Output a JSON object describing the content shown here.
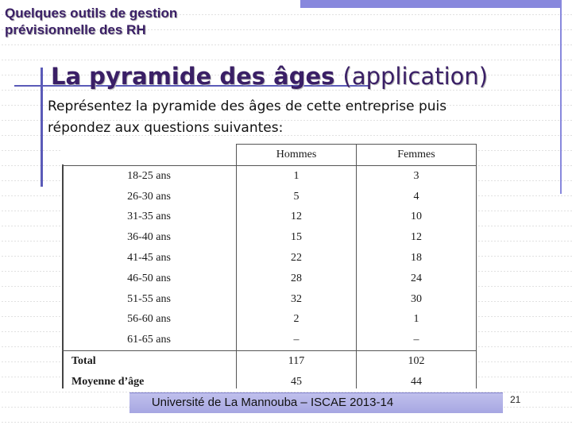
{
  "header": {
    "title_line1": "Quelques outils de gestion",
    "title_line2": "prévisionnelle des RH"
  },
  "slide": {
    "title_bold": "La pyramide des âges",
    "title_light": "(application)",
    "instruction_line1": "Représentez la pyramide des âges de cette entreprise puis",
    "instruction_line2": "répondez aux questions suivantes:"
  },
  "table": {
    "columns": [
      "",
      "Hommes",
      "Femmes"
    ],
    "rows": [
      {
        "label": "18-25 ans",
        "hommes": "1",
        "femmes": "3"
      },
      {
        "label": "26-30 ans",
        "hommes": "5",
        "femmes": "4"
      },
      {
        "label": "31-35 ans",
        "hommes": "12",
        "femmes": "10"
      },
      {
        "label": "36-40 ans",
        "hommes": "15",
        "femmes": "12"
      },
      {
        "label": "41-45 ans",
        "hommes": "22",
        "femmes": "18"
      },
      {
        "label": "46-50 ans",
        "hommes": "28",
        "femmes": "24"
      },
      {
        "label": "51-55 ans",
        "hommes": "32",
        "femmes": "30"
      },
      {
        "label": "56-60 ans",
        "hommes": "2",
        "femmes": "1"
      },
      {
        "label": "61-65 ans",
        "hommes": "–",
        "femmes": "–"
      }
    ],
    "total": {
      "label": "Total",
      "hommes": "117",
      "femmes": "102"
    },
    "mean": {
      "label": "Moyenne d’âge",
      "hommes": "45",
      "femmes": "44"
    }
  },
  "footer": {
    "text": "Université de La Mannouba – ISCAE 2013-14",
    "page_number": "21"
  },
  "colors": {
    "title": "#3a1f66",
    "accent": "#8888dd"
  }
}
